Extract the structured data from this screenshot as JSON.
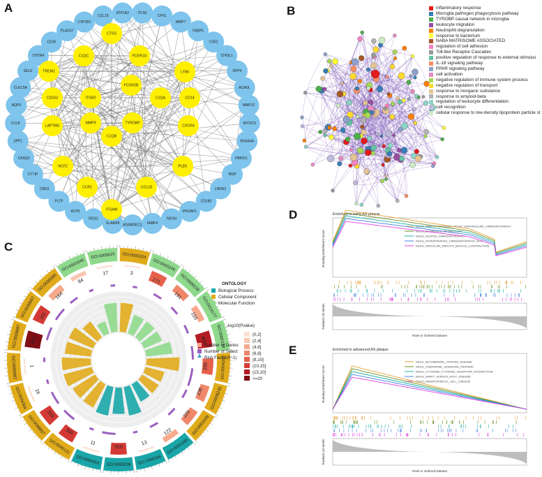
{
  "panels": {
    "A": "A",
    "B": "B",
    "C": "C",
    "D": "D",
    "E": "E"
  },
  "network_A": {
    "hub_genes": [
      "CTSS",
      "C1QC",
      "FCER1G",
      "TREM1",
      "LY86",
      "CD163",
      "ITGB2",
      "FCGR2B",
      "C1QA",
      "CD14",
      "LAPTM5",
      "MMP9",
      "TYROBP",
      "CXCR4",
      "C1QB",
      "NCF2",
      "PLEK",
      "CCR1",
      "ITGAM",
      "CCL18"
    ],
    "peripheral_genes": [
      "ITLN1",
      "CPVL",
      "MMP7",
      "FABP5",
      "CD52",
      "CHI3L1",
      "DPP4",
      "ACADL",
      "MMP12",
      "MYOCD",
      "MS4A4A",
      "HMOX1",
      "IBSP",
      "LRRN1",
      "CD180",
      "PIK3AP1",
      "NEXN",
      "FABP4",
      "ADAMDEC1",
      "SLAMF8",
      "RGS1",
      "ACP5",
      "PLTP",
      "CNN1",
      "CYTIP",
      "CASQ2",
      "SPP1",
      "CCL8",
      "AQP9",
      "CLEC5A",
      "SELE",
      "CNTN4",
      "CD36",
      "PLA2G7",
      "CYP1B1",
      "CCL19",
      "ATP1A2"
    ],
    "hub_color": "#ffef00",
    "peripheral_color": "#7ec4ec"
  },
  "enrichment_B": {
    "terms": [
      {
        "label": "inflammatory response",
        "color": "#e41a1c"
      },
      {
        "label": "Microglia pathogen phagocytosis pathway",
        "color": "#377eb8"
      },
      {
        "label": "TYROBP causal network in microglia",
        "color": "#4daf4a"
      },
      {
        "label": "leukocyte migration",
        "color": "#984ea3"
      },
      {
        "label": "Neutrophil degranulation",
        "color": "#ff7f00"
      },
      {
        "label": "response to bacterium",
        "color": "#ffff33"
      },
      {
        "label": "NABA MATRISOME ASSOCIATED",
        "color": "#a65628"
      },
      {
        "label": "regulation of cell adhesion",
        "color": "#f781bf"
      },
      {
        "label": "Toll-like Receptor Cascades",
        "color": "#999999"
      },
      {
        "label": "positive regulation of response to external stimulus",
        "color": "#66c2a5"
      },
      {
        "label": "IL-18 signaling pathway",
        "color": "#fc8d62"
      },
      {
        "label": "PPAR signaling pathway",
        "color": "#8da0cb"
      },
      {
        "label": "cell activation",
        "color": "#e78ac3"
      },
      {
        "label": "negative regulation of immune system process",
        "color": "#a6d854"
      },
      {
        "label": "negative regulation of transport",
        "color": "#ffd92f"
      },
      {
        "label": "response to inorganic substance",
        "color": "#e5c494"
      },
      {
        "label": "response to amyloid-beta",
        "color": "#b3b3b3"
      },
      {
        "label": "regulation of leukocyte differentiation",
        "color": "#8dd3c7"
      },
      {
        "label": "cell recognition",
        "color": "#bebada"
      },
      {
        "label": "cellular response to low-density lipoprotein particle st",
        "color": "#ccebc5"
      }
    ]
  },
  "circos_C": {
    "go_terms": [
      {
        "id": "GO:0005324",
        "ontology": "CC",
        "genes": 3,
        "select": 1
      },
      {
        "id": "GO:0000246",
        "ontology": "MF",
        "genes": 271,
        "select": 2
      },
      {
        "id": "GO:0008236",
        "ontology": "MF",
        "genes": 191,
        "select": 2
      },
      {
        "id": "GO:0019177",
        "ontology": "MF",
        "genes": 155,
        "select": 2
      },
      {
        "id": "GO:0005178",
        "ontology": "MF",
        "genes": 400,
        "select": 3
      },
      {
        "id": "GO:0004252",
        "ontology": "CC",
        "genes": 285,
        "select": 4
      },
      {
        "id": "GO:0008235",
        "ontology": "CC",
        "genes": 236,
        "select": 2
      },
      {
        "id": "GO:0001936",
        "ontology": "CC",
        "genes": 226,
        "select": 2
      },
      {
        "id": "GO:0001935",
        "ontology": "BP",
        "genes": 122,
        "select": 2
      },
      {
        "id": "GO:1990266",
        "ontology": "BP",
        "genes": 13,
        "select": 1
      },
      {
        "id": "GO:0060326",
        "ontology": "BP",
        "genes": 310,
        "select": 3
      },
      {
        "id": "GO:0060353",
        "ontology": "BP",
        "genes": 11,
        "select": 1
      },
      {
        "id": "GO:0045121",
        "ontology": "CC",
        "genes": 305,
        "select": 3
      },
      {
        "id": "GO:0098857",
        "ontology": "CC",
        "genes": 333,
        "select": 3
      },
      {
        "id": "GO:0034364",
        "ontology": "CC",
        "genes": 16,
        "select": 1
      },
      {
        "id": "GO:0005887",
        "ontology": "CC",
        "genes": 1,
        "select": 1
      },
      {
        "id": "GO:0009897",
        "ontology": "CC",
        "genes": 421,
        "select": 3
      },
      {
        "id": "GO:0030667",
        "ontology": "CC",
        "genes": 311,
        "select": 3
      },
      {
        "id": "GO:0035580",
        "ontology": "CC",
        "genes": 164,
        "select": 2
      },
      {
        "id": "GO:0001540",
        "ontology": "MF",
        "genes": 84,
        "select": 1
      },
      {
        "id": "GO:0005615",
        "ontology": "MF",
        "genes": 17,
        "select": 1
      }
    ],
    "legend": {
      "ontology_title": "ONTOLOGY",
      "ontology_items": [
        {
          "label": "Biological Process",
          "color": "#1aa6a8"
        },
        {
          "label": "Cellular Component",
          "color": "#e0ab1b"
        },
        {
          "label": "Molecular Function",
          "color": "#8fd98c"
        }
      ],
      "pvalue_title": "-log10(Pvalue)",
      "pvalue_bins": [
        {
          "label": "(0,2]",
          "color": "#fbe2d5"
        },
        {
          "label": "(2,4]",
          "color": "#f9c8b2"
        },
        {
          "label": "(4,6]",
          "color": "#f6a98d"
        },
        {
          "label": "(6,8]",
          "color": "#f0876a"
        },
        {
          "label": "(8,10]",
          "color": "#e6604b"
        },
        {
          "label": "(10,15]",
          "color": "#d43a35"
        },
        {
          "label": "(15,20]",
          "color": "#b51c24"
        },
        {
          "label": ">=20",
          "color": "#7f0f15"
        }
      ],
      "bars": [
        {
          "label": "Number of Genes",
          "color": "#f4a38e"
        },
        {
          "label": "Number of Select",
          "color": "#9b5fc0"
        },
        {
          "label": "Rich Factor(0~1)",
          "color": "#4b9fd5"
        }
      ]
    }
  },
  "gsea_D": {
    "title": "Enriched in early AS plaque",
    "ylabel_top": "Running Enrichment Score",
    "ylabel_bottom": "Ranked List Metric",
    "xlabel": "Rank in Ordered Dataset",
    "gene_sets": [
      {
        "name": "KEGG_ARRHYTHMOGENIC_RIGHT_VENTRICULAR_CARDIOMYOPATHY",
        "color": "#e8a33a"
      },
      {
        "name": "KEGG_BUTANOATE_METABOLISM",
        "color": "#6b8e23"
      },
      {
        "name": "KEGG_DILATED_CARDIOMYOPATHY",
        "color": "#20b2aa"
      },
      {
        "name": "KEGG_HYPERTROPHIC_CARDIOMYOPATHY_HCM",
        "color": "#4682e6"
      },
      {
        "name": "KEGG_VASCULAR_SMOOTH_MUSCLE_CONTRACTION",
        "color": "#e040e0"
      }
    ]
  },
  "gsea_E": {
    "title": "Enriched in advanced AS plaque",
    "ylabel_top": "Running Enrichment Score",
    "ylabel_bottom": "Ranked List Metric",
    "xlabel": "Rank in Ordered Dataset",
    "gene_sets": [
      {
        "name": "KEGG_AUTOIMMUNE_THYROID_DISEASE",
        "color": "#e8a33a"
      },
      {
        "name": "KEGG_CHEMOKINE_SIGNALING_PATHWAY",
        "color": "#6b8e23"
      },
      {
        "name": "KEGG_CYTOKINE_CYTOKINE_RECEPTOR_INTERACTION",
        "color": "#20b2aa"
      },
      {
        "name": "KEGG_GRAFT_VERSUS_HOST_DISEASE",
        "color": "#4682e6"
      },
      {
        "name": "KEGG_HEMATOPOIETIC_CELL_LINEAGE",
        "color": "#e040e0"
      }
    ]
  }
}
